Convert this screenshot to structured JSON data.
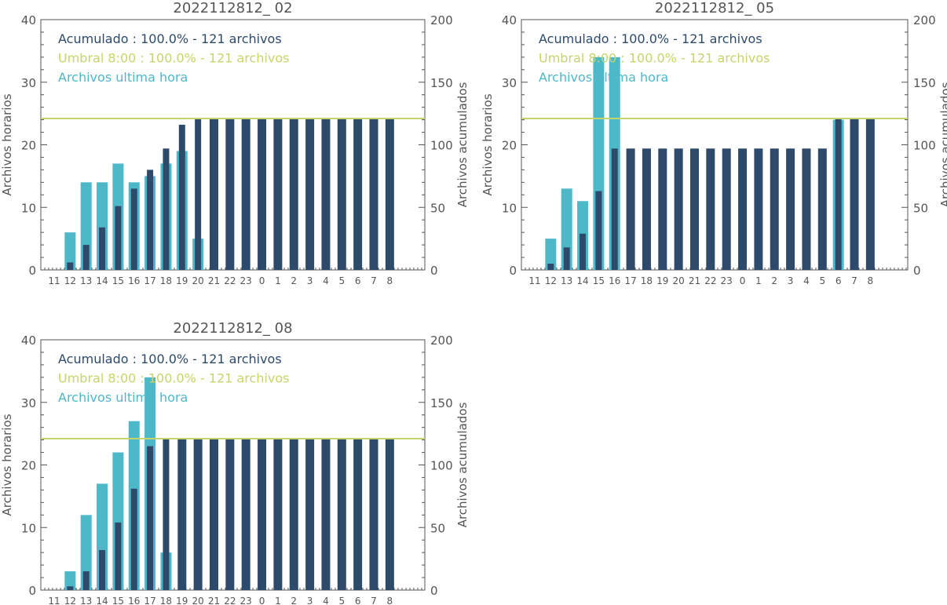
{
  "colors": {
    "hourly": "#4db8c8",
    "cumulative": "#2e4a6b",
    "threshold": "#c8d46a",
    "axis": "#555555",
    "text": "#555555"
  },
  "chart_data": [
    {
      "type": "bar",
      "title": "2022112812_ 02",
      "ylabel": "Archivos horarios",
      "y2label": "Archivos acumulados",
      "ylim": [
        0,
        40
      ],
      "y2lim": [
        0,
        200
      ],
      "categories": [
        "11",
        "12",
        "13",
        "14",
        "15",
        "16",
        "17",
        "18",
        "19",
        "20",
        "21",
        "22",
        "23",
        "0",
        "1",
        "2",
        "3",
        "4",
        "5",
        "6",
        "7",
        "8"
      ],
      "threshold_y2": 121,
      "legend": [
        "Acumulado : 100.0% - 121 archivos",
        "Umbral 8:00 : 100.0% - 121 archivos",
        "Archivos ultima hora"
      ],
      "series": [
        {
          "name": "Archivos ultima hora",
          "axis": "left",
          "values": [
            0,
            6,
            14,
            14,
            17,
            14,
            15,
            17,
            19,
            5,
            0,
            0,
            0,
            0,
            0,
            0,
            0,
            0,
            0,
            0,
            0,
            0
          ]
        },
        {
          "name": "Acumulado",
          "axis": "right",
          "values": [
            0,
            6,
            20,
            34,
            51,
            65,
            80,
            97,
            116,
            121,
            121,
            121,
            121,
            121,
            121,
            121,
            121,
            121,
            121,
            121,
            121,
            121
          ]
        }
      ]
    },
    {
      "type": "bar",
      "title": "2022112812_ 05",
      "ylabel": "Archivos horarios",
      "y2label": "Archivos acumulados",
      "ylim": [
        0,
        40
      ],
      "y2lim": [
        0,
        200
      ],
      "categories": [
        "11",
        "12",
        "13",
        "14",
        "15",
        "16",
        "17",
        "18",
        "19",
        "20",
        "21",
        "22",
        "23",
        "0",
        "1",
        "2",
        "3",
        "4",
        "5",
        "6",
        "7",
        "8"
      ],
      "threshold_y2": 121,
      "legend": [
        "Acumulado : 100.0% - 121 archivos",
        "Umbral 8:00 : 100.0% - 121 archivos",
        "Archivos ultima hora"
      ],
      "series": [
        {
          "name": "Archivos ultima hora",
          "axis": "left",
          "values": [
            0,
            5,
            13,
            11,
            34,
            34,
            0,
            0,
            0,
            0,
            0,
            0,
            0,
            0,
            0,
            0,
            0,
            0,
            0,
            24,
            0,
            0
          ]
        },
        {
          "name": "Acumulado",
          "axis": "right",
          "values": [
            0,
            5,
            18,
            29,
            63,
            97,
            97,
            97,
            97,
            97,
            97,
            97,
            97,
            97,
            97,
            97,
            97,
            97,
            97,
            121,
            121,
            121
          ]
        }
      ]
    },
    {
      "type": "bar",
      "title": "2022112812_ 08",
      "ylabel": "Archivos horarios",
      "y2label": "Archivos acumulados",
      "ylim": [
        0,
        40
      ],
      "y2lim": [
        0,
        200
      ],
      "categories": [
        "11",
        "12",
        "13",
        "14",
        "15",
        "16",
        "17",
        "18",
        "19",
        "20",
        "21",
        "22",
        "23",
        "0",
        "1",
        "2",
        "3",
        "4",
        "5",
        "6",
        "7",
        "8"
      ],
      "threshold_y2": 121,
      "legend": [
        "Acumulado : 100.0% - 121 archivos",
        "Umbral 8:00 : 100.0% - 121 archivos",
        "Archivos ultima hora"
      ],
      "series": [
        {
          "name": "Archivos ultima hora",
          "axis": "left",
          "values": [
            0,
            3,
            12,
            17,
            22,
            27,
            34,
            6,
            0,
            0,
            0,
            0,
            0,
            0,
            0,
            0,
            0,
            0,
            0,
            0,
            0,
            0
          ]
        },
        {
          "name": "Acumulado",
          "axis": "right",
          "values": [
            0,
            3,
            15,
            32,
            54,
            81,
            115,
            121,
            121,
            121,
            121,
            121,
            121,
            121,
            121,
            121,
            121,
            121,
            121,
            121,
            121,
            121
          ]
        }
      ]
    }
  ]
}
